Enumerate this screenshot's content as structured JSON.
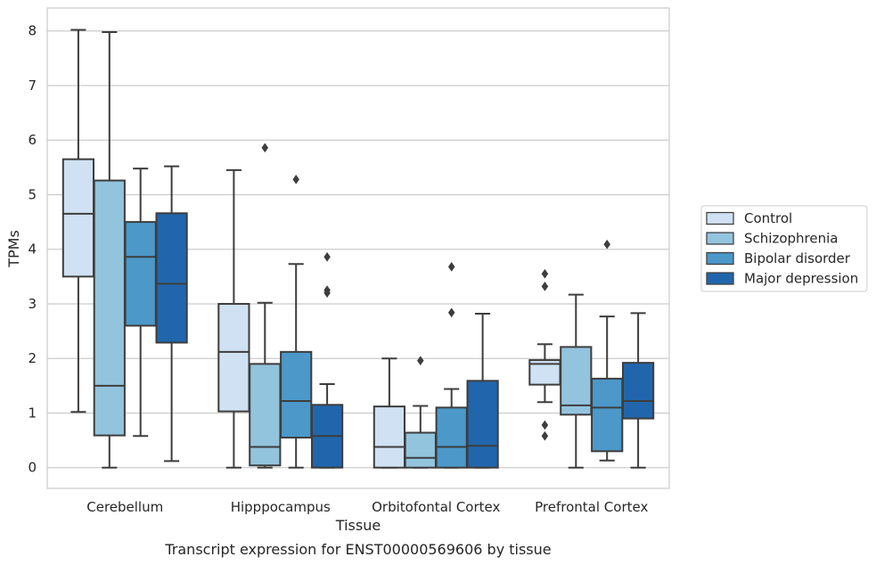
{
  "chart_data": {
    "type": "box",
    "title": "",
    "caption": "Transcript expression for ENST00000569606 by tissue",
    "xlabel": "Tissue",
    "ylabel": "TPMs",
    "ylim": [
      -0.38,
      8.42
    ],
    "yticks": [
      "0",
      "1",
      "2",
      "3",
      "4",
      "5",
      "6",
      "7",
      "8"
    ],
    "grid": true,
    "legend_position": "center-right outside",
    "categories": [
      "Cerebellum",
      "Hipppocampus",
      "Orbitofontal Cortex",
      "Prefrontal Cortex"
    ],
    "series": [
      {
        "name": "Control",
        "color": "#cfe1f2",
        "boxes": [
          {
            "whislo": 1.02,
            "q1": 3.5,
            "med": 4.65,
            "q3": 5.65,
            "whishi": 8.02,
            "fliers": []
          },
          {
            "whislo": 0.0,
            "q1": 1.03,
            "med": 2.12,
            "q3": 3.0,
            "whishi": 5.45,
            "fliers": []
          },
          {
            "whislo": 0.0,
            "q1": 0.0,
            "med": 0.38,
            "q3": 1.12,
            "whishi": 2.0,
            "fliers": []
          },
          {
            "whislo": 1.2,
            "q1": 1.52,
            "med": 1.9,
            "q3": 1.97,
            "whishi": 2.26,
            "fliers": [
              0.78,
              0.58,
              3.32,
              3.55
            ]
          }
        ]
      },
      {
        "name": "Schizophrenia",
        "color": "#93c4de",
        "boxes": [
          {
            "whislo": 0.0,
            "q1": 0.59,
            "med": 1.5,
            "q3": 5.26,
            "whishi": 7.98,
            "fliers": []
          },
          {
            "whislo": 0.0,
            "q1": 0.04,
            "med": 0.38,
            "q3": 1.9,
            "whishi": 3.02,
            "fliers": [
              5.86
            ]
          },
          {
            "whislo": 0.0,
            "q1": 0.0,
            "med": 0.18,
            "q3": 0.64,
            "whishi": 1.13,
            "fliers": [
              1.96
            ]
          },
          {
            "whislo": 0.0,
            "q1": 0.97,
            "med": 1.14,
            "q3": 2.21,
            "whishi": 3.17,
            "fliers": []
          }
        ]
      },
      {
        "name": "Bipolar disorder",
        "color": "#4b98c9",
        "boxes": [
          {
            "whislo": 0.58,
            "q1": 2.6,
            "med": 3.86,
            "q3": 4.5,
            "whishi": 5.48,
            "fliers": []
          },
          {
            "whislo": 0.0,
            "q1": 0.55,
            "med": 1.22,
            "q3": 2.12,
            "whishi": 3.73,
            "fliers": [
              5.28
            ]
          },
          {
            "whislo": 0.0,
            "q1": 0.0,
            "med": 0.38,
            "q3": 1.1,
            "whishi": 1.44,
            "fliers": [
              2.84,
              3.68
            ]
          },
          {
            "whislo": 0.13,
            "q1": 0.3,
            "med": 1.1,
            "q3": 1.63,
            "whishi": 2.77,
            "fliers": [
              4.09
            ]
          }
        ]
      },
      {
        "name": "Major depression",
        "color": "#2166ac",
        "boxes": [
          {
            "whislo": 0.12,
            "q1": 2.29,
            "med": 3.37,
            "q3": 4.66,
            "whishi": 5.52,
            "fliers": []
          },
          {
            "whislo": 0.0,
            "q1": 0.0,
            "med": 0.58,
            "q3": 1.15,
            "whishi": 1.53,
            "fliers": [
              3.2,
              3.25,
              3.86
            ]
          },
          {
            "whislo": 0.0,
            "q1": 0.0,
            "med": 0.4,
            "q3": 1.59,
            "whishi": 2.82,
            "fliers": []
          },
          {
            "whislo": 0.0,
            "q1": 0.9,
            "med": 1.22,
            "q3": 1.92,
            "whishi": 2.83,
            "fliers": []
          }
        ]
      }
    ]
  }
}
